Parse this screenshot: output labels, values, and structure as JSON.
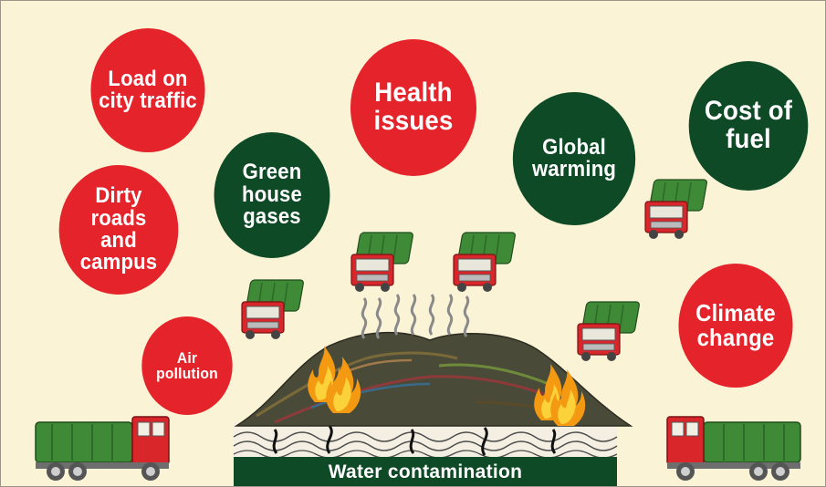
{
  "colors": {
    "background": "#fbf3d6",
    "red": "#e5232a",
    "dark_green": "#0f4a27",
    "truck_green": "#3f8a36",
    "cab_red": "#d9262b"
  },
  "bubbles": {
    "traffic": "Load on\ncity traffic",
    "health": "Health\nissues",
    "fuel": "Cost of\nfuel",
    "greenhouse": "Green\nhouse\ngases",
    "global": "Global\nwarming",
    "roads": "Dirty\nroads\nand\ncampus",
    "air": "Air\npollution",
    "climate": "Climate\nchange"
  },
  "banner": {
    "label": "Water contamination"
  },
  "icons": [
    "garbage-truck-icon",
    "landfill-mound-icon",
    "fire-icon",
    "smoke-icon",
    "water-waves-icon"
  ]
}
